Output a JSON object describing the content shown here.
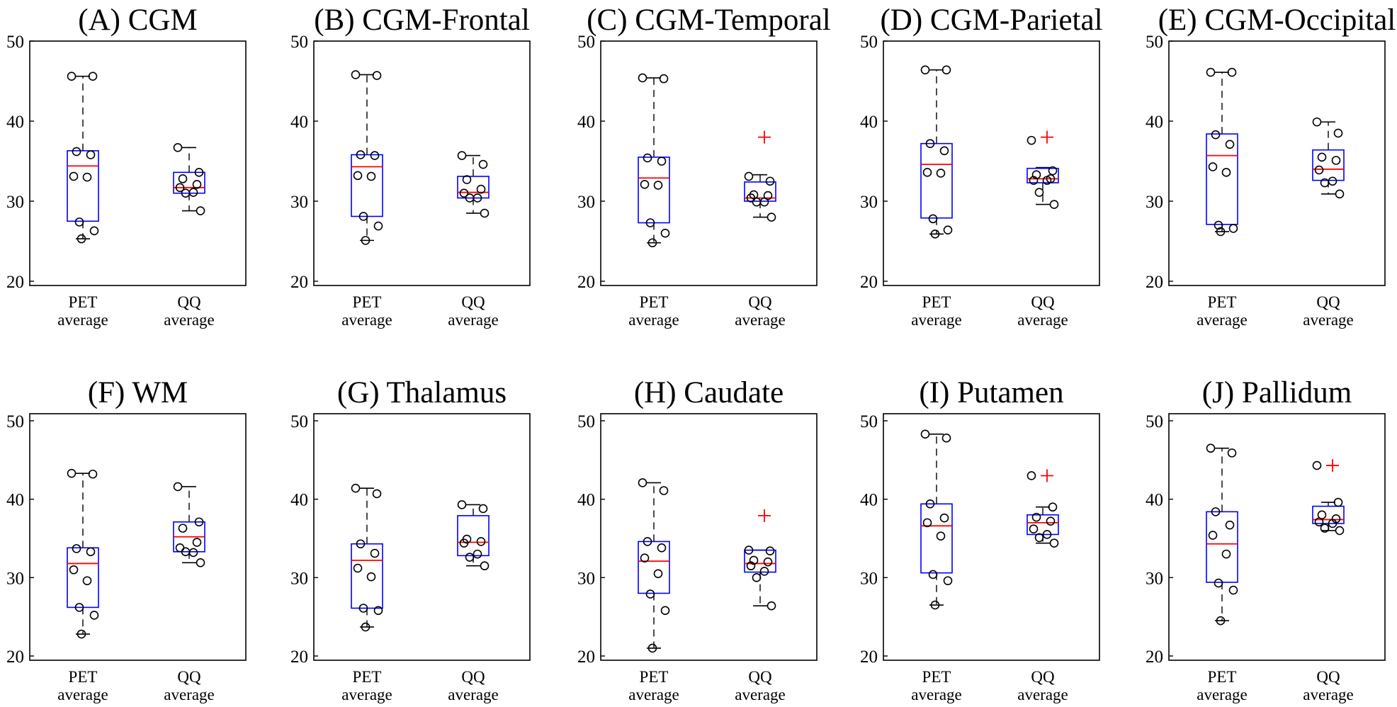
{
  "chart_data": [
    {
      "type": "box",
      "title": "(A) CGM",
      "categories": [
        "PET average",
        "QQ average"
      ],
      "ylim": [
        20,
        50
      ],
      "yticks": [
        20,
        30,
        40,
        50
      ],
      "series": [
        {
          "name": "PET average",
          "q1": 27.5,
          "median": 34.4,
          "q3": 36.3,
          "whisker_low": 25.3,
          "whisker_high": 45.6,
          "outliers": [],
          "points": [
            45.6,
            45.6,
            36.2,
            35.8,
            33.1,
            33.0,
            27.4,
            26.3,
            25.3
          ]
        },
        {
          "name": "QQ average",
          "q1": 31.0,
          "median": 31.7,
          "q3": 33.6,
          "whisker_low": 28.8,
          "whisker_high": 36.7,
          "outliers": [],
          "points": [
            36.7,
            33.6,
            32.8,
            32.1,
            31.7,
            31.1,
            31.0,
            28.8
          ]
        }
      ]
    },
    {
      "type": "box",
      "title": "(B) CGM-Frontal",
      "categories": [
        "PET average",
        "QQ average"
      ],
      "ylim": [
        20,
        50
      ],
      "yticks": [
        20,
        30,
        40,
        50
      ],
      "series": [
        {
          "name": "PET average",
          "q1": 28.1,
          "median": 34.3,
          "q3": 35.8,
          "whisker_low": 25.1,
          "whisker_high": 45.8,
          "outliers": [],
          "points": [
            45.8,
            45.7,
            35.8,
            35.7,
            33.2,
            33.1,
            28.1,
            26.9,
            25.1
          ]
        },
        {
          "name": "QQ average",
          "q1": 30.4,
          "median": 31.1,
          "q3": 33.1,
          "whisker_low": 28.5,
          "whisker_high": 35.7,
          "outliers": [],
          "points": [
            35.7,
            34.6,
            32.7,
            31.5,
            31.0,
            30.4,
            30.4,
            28.5
          ]
        }
      ]
    },
    {
      "type": "box",
      "title": "(C) CGM-Temporal",
      "categories": [
        "PET average",
        "QQ average"
      ],
      "ylim": [
        20,
        50
      ],
      "yticks": [
        20,
        30,
        40,
        50
      ],
      "series": [
        {
          "name": "PET average",
          "q1": 27.3,
          "median": 32.9,
          "q3": 35.5,
          "whisker_low": 24.8,
          "whisker_high": 45.4,
          "outliers": [],
          "points": [
            45.4,
            45.3,
            35.4,
            35.0,
            32.1,
            32.0,
            27.3,
            26.0,
            24.8
          ]
        },
        {
          "name": "QQ average",
          "q1": 30.0,
          "median": 30.4,
          "q3": 32.4,
          "whisker_low": 28.0,
          "whisker_high": 33.3,
          "outliers": [
            38.0
          ],
          "points": [
            33.1,
            32.5,
            30.8,
            30.7,
            30.4,
            29.9,
            29.9,
            28.0
          ]
        }
      ]
    },
    {
      "type": "box",
      "title": "(D) CGM-Parietal",
      "categories": [
        "PET average",
        "QQ average"
      ],
      "ylim": [
        20,
        50
      ],
      "yticks": [
        20,
        30,
        40,
        50
      ],
      "series": [
        {
          "name": "PET average",
          "q1": 27.9,
          "median": 34.6,
          "q3": 37.2,
          "whisker_low": 25.9,
          "whisker_high": 46.4,
          "outliers": [],
          "points": [
            46.4,
            46.4,
            37.2,
            36.3,
            33.6,
            33.5,
            27.8,
            26.4,
            25.9
          ]
        },
        {
          "name": "QQ average",
          "q1": 32.3,
          "median": 32.8,
          "q3": 34.1,
          "whisker_low": 29.6,
          "whisker_high": 34.2,
          "outliers": [
            38.0
          ],
          "points": [
            37.6,
            33.8,
            33.3,
            32.8,
            32.6,
            32.6,
            31.1,
            29.6
          ]
        }
      ]
    },
    {
      "type": "box",
      "title": "(E) CGM-Occipital",
      "categories": [
        "PET average",
        "QQ average"
      ],
      "ylim": [
        20,
        50
      ],
      "yticks": [
        20,
        30,
        40,
        50
      ],
      "series": [
        {
          "name": "PET average",
          "q1": 27.1,
          "median": 35.7,
          "q3": 38.4,
          "whisker_low": 26.2,
          "whisker_high": 46.1,
          "outliers": [],
          "points": [
            46.1,
            46.1,
            38.3,
            37.1,
            34.3,
            33.6,
            27.0,
            26.6,
            26.2
          ]
        },
        {
          "name": "QQ average",
          "q1": 32.6,
          "median": 34.0,
          "q3": 36.4,
          "whisker_low": 30.9,
          "whisker_high": 39.9,
          "outliers": [],
          "points": [
            39.9,
            38.5,
            35.5,
            35.1,
            33.9,
            32.5,
            32.3,
            30.9
          ]
        }
      ]
    },
    {
      "type": "box",
      "title": "(F) WM",
      "categories": [
        "PET average",
        "QQ average"
      ],
      "ylim": [
        20,
        50
      ],
      "yticks": [
        20,
        30,
        40,
        50
      ],
      "series": [
        {
          "name": "PET average",
          "q1": 26.2,
          "median": 31.8,
          "q3": 33.8,
          "whisker_low": 22.8,
          "whisker_high": 43.3,
          "outliers": [],
          "points": [
            43.3,
            43.2,
            33.7,
            33.3,
            31.0,
            29.6,
            26.2,
            25.2,
            22.8
          ]
        },
        {
          "name": "QQ average",
          "q1": 33.3,
          "median": 35.2,
          "q3": 37.1,
          "whisker_low": 31.9,
          "whisker_high": 41.6,
          "outliers": [],
          "points": [
            41.6,
            37.1,
            36.3,
            34.5,
            33.8,
            33.2,
            33.3,
            31.9
          ]
        }
      ]
    },
    {
      "type": "box",
      "title": "(G) Thalamus",
      "categories": [
        "PET average",
        "QQ average"
      ],
      "ylim": [
        20,
        50
      ],
      "yticks": [
        20,
        30,
        40,
        50
      ],
      "series": [
        {
          "name": "PET average",
          "q1": 26.1,
          "median": 32.2,
          "q3": 34.3,
          "whisker_low": 23.7,
          "whisker_high": 41.4,
          "outliers": [],
          "points": [
            41.4,
            40.7,
            34.3,
            33.1,
            31.2,
            30.1,
            26.1,
            25.8,
            23.7
          ]
        },
        {
          "name": "QQ average",
          "q1": 32.8,
          "median": 34.5,
          "q3": 37.9,
          "whisker_low": 31.5,
          "whisker_high": 39.3,
          "outliers": [],
          "points": [
            39.3,
            38.8,
            34.9,
            34.6,
            34.4,
            33.0,
            32.6,
            31.5
          ]
        }
      ]
    },
    {
      "type": "box",
      "title": "(H) Caudate",
      "categories": [
        "PET average",
        "QQ average"
      ],
      "ylim": [
        20,
        50
      ],
      "yticks": [
        20,
        30,
        40,
        50
      ],
      "series": [
        {
          "name": "PET average",
          "q1": 28.0,
          "median": 32.1,
          "q3": 34.6,
          "whisker_low": 21.0,
          "whisker_high": 42.1,
          "outliers": [],
          "points": [
            42.1,
            41.1,
            34.6,
            33.8,
            32.5,
            30.5,
            27.9,
            25.8,
            21.0
          ]
        },
        {
          "name": "QQ average",
          "q1": 30.7,
          "median": 31.8,
          "q3": 33.5,
          "whisker_low": 26.4,
          "whisker_high": 33.5,
          "outliers": [
            37.9
          ],
          "points": [
            33.5,
            33.4,
            32.2,
            32.0,
            31.5,
            30.8,
            30.0,
            26.4
          ]
        }
      ]
    },
    {
      "type": "box",
      "title": "(I) Putamen",
      "categories": [
        "PET average",
        "QQ average"
      ],
      "ylim": [
        20,
        50
      ],
      "yticks": [
        20,
        30,
        40,
        50
      ],
      "series": [
        {
          "name": "PET average",
          "q1": 30.6,
          "median": 36.6,
          "q3": 39.4,
          "whisker_low": 26.5,
          "whisker_high": 48.3,
          "outliers": [],
          "points": [
            48.3,
            47.8,
            39.4,
            37.6,
            37.0,
            35.3,
            30.4,
            29.6,
            26.5
          ]
        },
        {
          "name": "QQ average",
          "q1": 35.5,
          "median": 37.0,
          "q3": 38.0,
          "whisker_low": 34.4,
          "whisker_high": 39.0,
          "outliers": [
            43.0
          ],
          "points": [
            43.0,
            39.0,
            37.7,
            37.2,
            36.2,
            35.5,
            35.1,
            34.4
          ]
        }
      ]
    },
    {
      "type": "box",
      "title": "(J) Pallidum",
      "categories": [
        "PET average",
        "QQ average"
      ],
      "ylim": [
        20,
        50
      ],
      "yticks": [
        20,
        30,
        40,
        50
      ],
      "series": [
        {
          "name": "PET average",
          "q1": 29.4,
          "median": 34.3,
          "q3": 38.4,
          "whisker_low": 24.5,
          "whisker_high": 46.5,
          "outliers": [],
          "points": [
            46.5,
            45.9,
            38.4,
            36.7,
            35.4,
            33.0,
            29.3,
            28.4,
            24.5
          ]
        },
        {
          "name": "QQ average",
          "q1": 36.9,
          "median": 37.4,
          "q3": 39.1,
          "whisker_low": 36.0,
          "whisker_high": 39.6,
          "outliers": [
            44.3
          ],
          "points": [
            44.3,
            39.6,
            38.0,
            37.5,
            37.1,
            36.9,
            36.3,
            36.0
          ]
        }
      ]
    }
  ]
}
